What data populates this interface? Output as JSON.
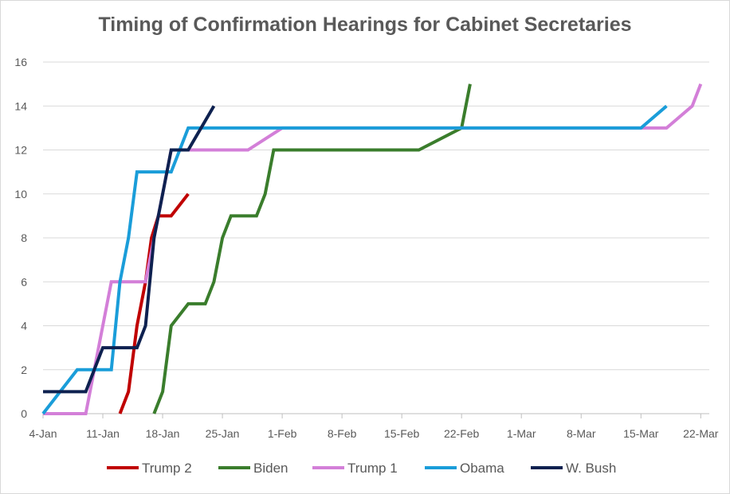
{
  "chart_data": {
    "type": "line",
    "title": "Timing of Confirmation Hearings for Cabinet Secretaries",
    "xlabel": "",
    "ylabel": "",
    "x_unit": "days since 4-Jan",
    "xlim": [
      0,
      78
    ],
    "ylim": [
      0,
      16
    ],
    "yticks": [
      0,
      2,
      4,
      6,
      8,
      10,
      12,
      14,
      16
    ],
    "xtick_labels": [
      "4-Jan",
      "11-Jan",
      "18-Jan",
      "25-Jan",
      "1-Feb",
      "8-Feb",
      "15-Feb",
      "22-Feb",
      "1-Mar",
      "8-Mar",
      "15-Mar",
      "22-Mar"
    ],
    "xtick_days": [
      0,
      7,
      14,
      21,
      28,
      35,
      42,
      49,
      56,
      63,
      70,
      77
    ],
    "grid": "horizontal",
    "legend_position": "bottom",
    "series": [
      {
        "name": "Trump 2",
        "color": "#c00000",
        "points": [
          [
            9,
            0
          ],
          [
            10,
            1
          ],
          [
            11,
            4
          ],
          [
            12,
            6
          ],
          [
            12.7,
            8
          ],
          [
            13.5,
            9
          ],
          [
            15,
            9
          ],
          [
            17,
            10
          ]
        ]
      },
      {
        "name": "Biden",
        "color": "#3a7d2c",
        "points": [
          [
            13,
            0
          ],
          [
            14,
            1
          ],
          [
            15,
            4
          ],
          [
            17,
            5
          ],
          [
            19,
            5
          ],
          [
            20,
            6
          ],
          [
            21,
            8
          ],
          [
            22,
            9
          ],
          [
            25,
            9
          ],
          [
            26,
            10
          ],
          [
            27,
            12
          ],
          [
            44,
            12
          ],
          [
            49,
            13
          ],
          [
            50,
            15
          ]
        ]
      },
      {
        "name": "Trump 1",
        "color": "#d37fd8",
        "points": [
          [
            0,
            0
          ],
          [
            5,
            0
          ],
          [
            6,
            2
          ],
          [
            7,
            4
          ],
          [
            8,
            6
          ],
          [
            12,
            6
          ],
          [
            13,
            8
          ],
          [
            14,
            10
          ],
          [
            15,
            12
          ],
          [
            24,
            12
          ],
          [
            28,
            13
          ],
          [
            73,
            13
          ],
          [
            76,
            14
          ],
          [
            77,
            15
          ]
        ]
      },
      {
        "name": "Obama",
        "color": "#1a9dd9",
        "points": [
          [
            0,
            0
          ],
          [
            4,
            2
          ],
          [
            8,
            2
          ],
          [
            9,
            6
          ],
          [
            10,
            8
          ],
          [
            11,
            11
          ],
          [
            15,
            11
          ],
          [
            17,
            13
          ],
          [
            70,
            13
          ],
          [
            73,
            14
          ]
        ]
      },
      {
        "name": "W. Bush",
        "color": "#0e2150",
        "points": [
          [
            0,
            1
          ],
          [
            5,
            1
          ],
          [
            7,
            3
          ],
          [
            11,
            3
          ],
          [
            12,
            4
          ],
          [
            13,
            8
          ],
          [
            14,
            10
          ],
          [
            15,
            12
          ],
          [
            17,
            12
          ],
          [
            20,
            14
          ]
        ]
      }
    ]
  }
}
